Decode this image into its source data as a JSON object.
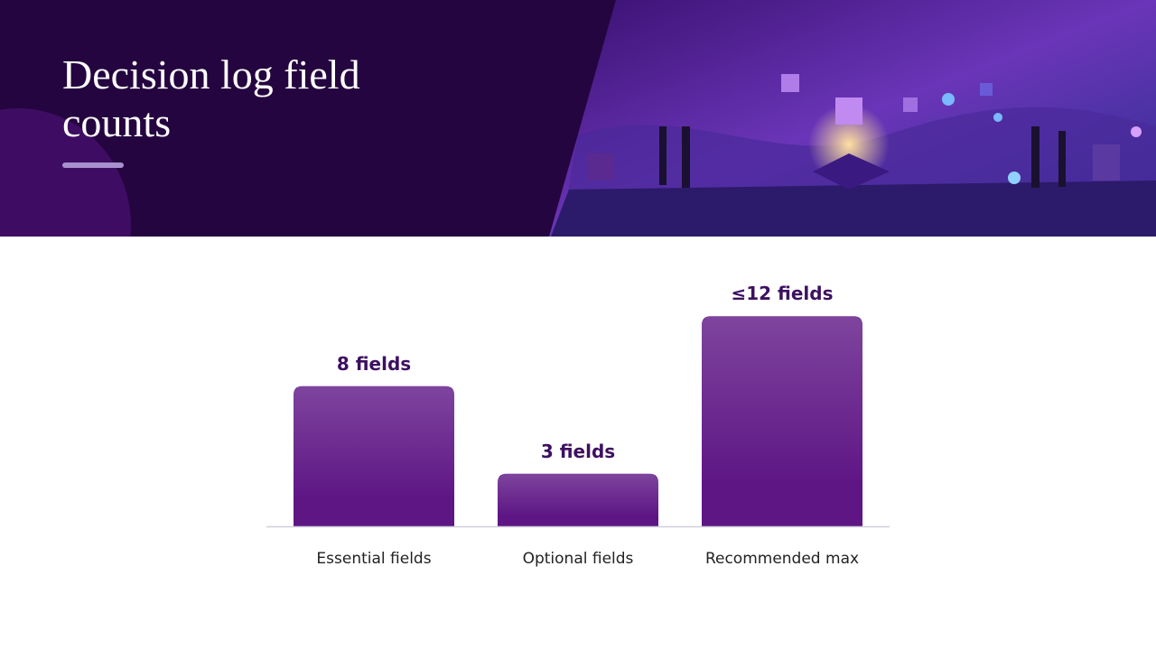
{
  "chart_data": {
    "type": "bar",
    "title": "Decision log field counts",
    "categories": [
      "Essential fields",
      "Optional fields",
      "Recommended max"
    ],
    "values": [
      8,
      3,
      12
    ],
    "value_labels": [
      "8 fields",
      "3 fields",
      "≤12 fields"
    ],
    "color": "#5e1685"
  }
}
